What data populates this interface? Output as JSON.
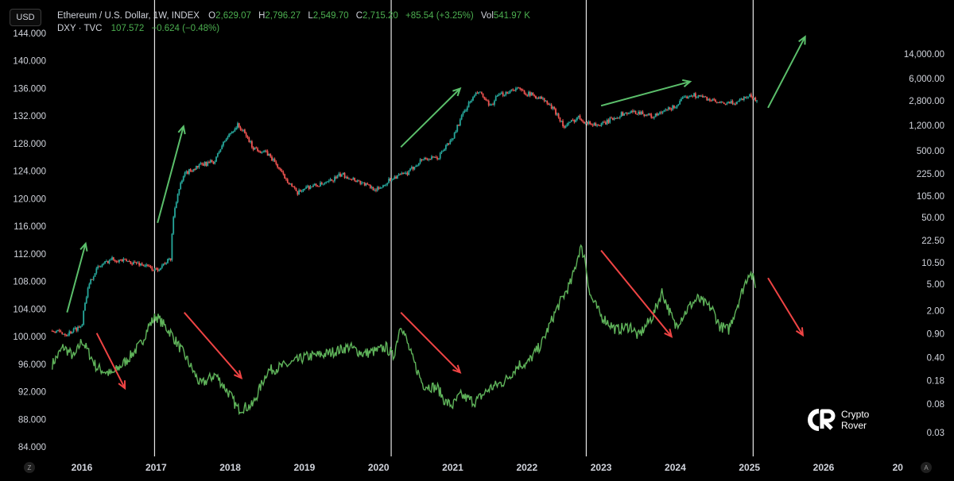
{
  "currency_button": "USD",
  "legend": {
    "eth": {
      "symbol": "Ethereum / U.S. Dollar, 1W, INDEX",
      "open_label": "O",
      "open": "2,629.07",
      "high_label": "H",
      "high": "2,796.27",
      "low_label": "L",
      "low": "2,549.70",
      "close_label": "C",
      "close": "2,715.20",
      "change": "+85.54 (+3.25%)",
      "vol_label": "Vol",
      "vol": "541.97 K"
    },
    "dxy": {
      "symbol": "DXY · TVC",
      "value": "107.572",
      "change": "−0.624 (−0.48%)"
    }
  },
  "left_axis_labels": [
    "144.000",
    "140.000",
    "136.000",
    "132.000",
    "128.000",
    "124.000",
    "120.000",
    "116.000",
    "112.000",
    "108.000",
    "104.000",
    "100.000",
    "96.000",
    "92.000",
    "88.000",
    "84.000"
  ],
  "right_axis_labels": [
    "14,000.00",
    "6,000.00",
    "2,800.00",
    "1,200.00",
    "500.00",
    "225.00",
    "105.00",
    "50.00",
    "22.50",
    "10.50",
    "5.00",
    "2.00",
    "0.90",
    "0.40",
    "0.18",
    "0.08",
    "0.03"
  ],
  "x_axis_labels": [
    "2016",
    "2017",
    "2018",
    "2019",
    "2020",
    "2021",
    "2022",
    "2023",
    "2024",
    "2025",
    "2026",
    "20"
  ],
  "corner_left": "Z",
  "corner_right": "A",
  "logo": {
    "line1": "Crypto",
    "line2": "Rover"
  },
  "chart_data": {
    "type": "line",
    "series": [
      {
        "name": "Ethereum / U.S. Dollar, 1W, INDEX",
        "scale": "log (right axis)",
        "color_up": "#26a69a",
        "color_down": "#ef5350",
        "x": [
          2015.6,
          2015.8,
          2016.0,
          2016.2,
          2016.4,
          2016.6,
          2016.8,
          2017.0,
          2017.2,
          2017.4,
          2017.6,
          2017.8,
          2018.0,
          2018.1,
          2018.3,
          2018.5,
          2018.7,
          2018.9,
          2019.0,
          2019.3,
          2019.5,
          2019.7,
          2019.9,
          2020.0,
          2020.2,
          2020.4,
          2020.6,
          2020.8,
          2021.0,
          2021.1,
          2021.35,
          2021.5,
          2021.6,
          2021.85,
          2022.0,
          2022.2,
          2022.4,
          2022.5,
          2022.7,
          2022.8,
          2023.0,
          2023.3,
          2023.5,
          2023.7,
          2023.8,
          2024.0,
          2024.2,
          2024.4,
          2024.6,
          2024.8,
          2025.0,
          2025.1
        ],
        "values": [
          1.0,
          0.9,
          1.2,
          8.5,
          12.0,
          11.0,
          10.0,
          8.0,
          12.0,
          230.0,
          300.0,
          350.0,
          900.0,
          1200.0,
          560.0,
          450.0,
          220.0,
          110.0,
          140.0,
          160.0,
          220.0,
          180.0,
          140.0,
          130.0,
          200.0,
          230.0,
          380.0,
          380.0,
          750.0,
          1400.0,
          3800.0,
          2200.0,
          3200.0,
          4300.0,
          3600.0,
          3000.0,
          1800.0,
          1100.0,
          1600.0,
          1300.0,
          1200.0,
          1800.0,
          1900.0,
          1600.0,
          1800.0,
          2300.0,
          3500.0,
          3100.0,
          2500.0,
          2600.0,
          3400.0,
          2700.0
        ]
      },
      {
        "name": "DXY · TVC",
        "scale": "linear (left axis)",
        "color": "#5fb35a",
        "x": [
          2015.6,
          2015.75,
          2015.9,
          2016.0,
          2016.2,
          2016.4,
          2016.6,
          2016.8,
          2016.9,
          2017.0,
          2017.2,
          2017.4,
          2017.6,
          2017.8,
          2018.0,
          2018.1,
          2018.3,
          2018.5,
          2018.8,
          2019.0,
          2019.3,
          2019.6,
          2019.8,
          2020.0,
          2020.1,
          2020.2,
          2020.3,
          2020.45,
          2020.6,
          2020.8,
          2020.9,
          2021.0,
          2021.1,
          2021.3,
          2021.5,
          2021.7,
          2021.9,
          2022.0,
          2022.2,
          2022.4,
          2022.6,
          2022.72,
          2022.78,
          2022.85,
          2023.0,
          2023.2,
          2023.4,
          2023.5,
          2023.7,
          2023.82,
          2024.0,
          2024.2,
          2024.3,
          2024.5,
          2024.6,
          2024.72,
          2024.8,
          2025.0,
          2025.08
        ],
        "values": [
          96.0,
          98.5,
          97.0,
          99.5,
          95.5,
          94.5,
          96.5,
          99.0,
          101.5,
          103.0,
          100.5,
          97.0,
          93.0,
          94.5,
          91.5,
          89.5,
          90.0,
          95.0,
          96.0,
          97.0,
          97.5,
          98.5,
          97.5,
          98.0,
          98.5,
          97.0,
          102.0,
          97.0,
          93.0,
          92.5,
          90.5,
          90.0,
          91.5,
          90.5,
          92.5,
          93.5,
          96.0,
          96.0,
          99.0,
          104.0,
          108.0,
          113.0,
          111.5,
          106.0,
          103.0,
          101.0,
          101.5,
          100.0,
          103.0,
          106.5,
          101.5,
          104.5,
          105.5,
          104.0,
          101.5,
          101.0,
          103.5,
          109.5,
          107.6
        ]
      }
    ],
    "vertical_markers_x": [
      2016.98,
      2020.17,
      2022.8,
      2025.05
    ],
    "annotations": [
      {
        "type": "arrow",
        "color": "#5bbf6b",
        "from": [
          2015.8,
          103.5
        ],
        "to": [
          2016.05,
          113.5
        ]
      },
      {
        "type": "arrow",
        "color": "#ef4444",
        "from": [
          2016.2,
          100.5
        ],
        "to": [
          2016.58,
          92.5
        ]
      },
      {
        "type": "arrow",
        "color": "#5bbf6b",
        "from": [
          2017.02,
          116.5
        ],
        "to": [
          2017.37,
          130.5
        ]
      },
      {
        "type": "arrow",
        "color": "#ef4444",
        "from": [
          2017.38,
          103.5
        ],
        "to": [
          2018.15,
          94.0
        ]
      },
      {
        "type": "arrow",
        "color": "#5bbf6b",
        "from": [
          2020.3,
          127.5
        ],
        "to": [
          2021.1,
          136.0
        ]
      },
      {
        "type": "arrow",
        "color": "#ef4444",
        "from": [
          2020.3,
          103.5
        ],
        "to": [
          2021.1,
          94.8
        ]
      },
      {
        "type": "arrow",
        "color": "#5bbf6b",
        "from": [
          2023.0,
          133.5
        ],
        "to": [
          2024.2,
          137.0
        ]
      },
      {
        "type": "arrow",
        "color": "#ef4444",
        "from": [
          2023.0,
          112.5
        ],
        "to": [
          2023.95,
          100.0
        ]
      },
      {
        "type": "arrow",
        "color": "#5bbf6b",
        "from": [
          2025.25,
          133.2
        ],
        "to": [
          2025.75,
          143.5
        ]
      },
      {
        "type": "arrow",
        "color": "#ef4444",
        "from": [
          2025.25,
          108.5
        ],
        "to": [
          2025.72,
          100.2
        ]
      }
    ],
    "left_ylim": [
      82,
      146
    ],
    "right_scale_labels_log": true,
    "grid": false,
    "background": "#000000"
  }
}
